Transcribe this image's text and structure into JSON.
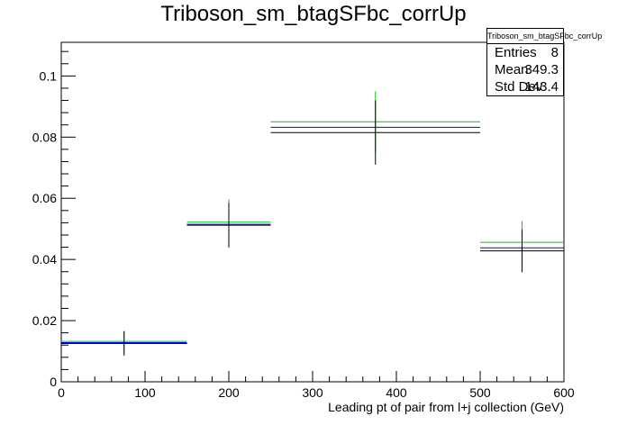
{
  "chart_data": {
    "type": "line",
    "title": "Triboson_sm_btagSFbc_corrUp",
    "xlabel": "Leading pt of pair from l+j collection (GeV)",
    "ylabel": "",
    "xlim": [
      0,
      600
    ],
    "ylim": [
      0,
      0.111
    ],
    "x_ticks": [
      0,
      100,
      200,
      300,
      400,
      500,
      600
    ],
    "y_ticks": [
      0,
      0.02,
      0.04,
      0.06,
      0.08,
      0.1
    ],
    "y_tick_labels": [
      "0",
      "0.02",
      "0.04",
      "0.06",
      "0.08",
      "0.1"
    ],
    "bins": [
      {
        "low": 0,
        "high": 150,
        "center": 75
      },
      {
        "low": 150,
        "high": 250,
        "center": 200
      },
      {
        "low": 250,
        "high": 500,
        "center": 375
      },
      {
        "low": 500,
        "high": 600,
        "center": 550
      }
    ],
    "series": [
      {
        "color": "#00cc00",
        "values": [
          0.0132,
          0.0522,
          0.085,
          0.0456
        ],
        "errors": [
          0.0035,
          0.0075,
          0.01,
          0.007
        ]
      },
      {
        "color": "#0000ff",
        "values": [
          0.0128,
          0.0515,
          0.0832,
          0.0438
        ],
        "errors": [
          0,
          0,
          0,
          0
        ]
      },
      {
        "color": "#000000",
        "values": [
          0.0125,
          0.0512,
          0.0815,
          0.0428
        ],
        "errors": [
          0.004,
          0.0073,
          0.0105,
          0.007
        ]
      }
    ],
    "grid": false,
    "legend": "none",
    "stats": {
      "name": "Triboson_sm_btagSFbc_corrUp",
      "rows": [
        {
          "label": "Entries",
          "value": "8"
        },
        {
          "label": "Mean",
          "value": "349.3"
        },
        {
          "label": "Std Dev",
          "value": "143.4"
        }
      ]
    }
  }
}
